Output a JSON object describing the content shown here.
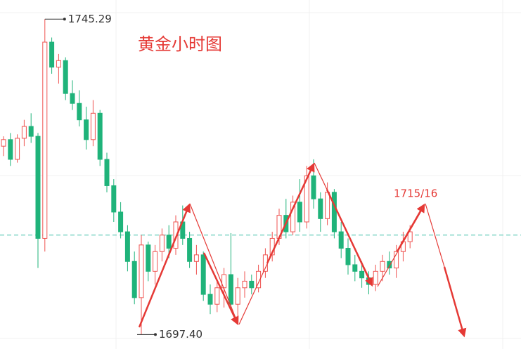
{
  "chart_data": {
    "type": "candlestick",
    "title": "黄金小时图",
    "target_label": "1715/16",
    "max_marker": 1745.29,
    "min_marker": {
      "value": 1697.4,
      "label": "1697.40"
    },
    "reference_line": 1712.5,
    "ylim": [
      1695.2,
      1748.2
    ],
    "up_color": "#ef5350",
    "down_color": "#1fb37a",
    "reference_color": "#6fcfbf",
    "annotation_color": "#e53935",
    "open": [
      1726.0,
      1727.0,
      1724.0,
      1727.2,
      1729.0,
      1727.5,
      1712.0,
      1741.8,
      1738.0,
      1739.0,
      1734.0,
      1732.5,
      1730.0,
      1727.0,
      1731.0,
      1724.0,
      1720.0,
      1716.0,
      1713.0,
      1708.5,
      1703.0,
      1711.0,
      1707.0,
      1710.0,
      1712.5,
      1710.5,
      1714.5,
      1712.0,
      1708.5,
      1709.5,
      1703.5,
      1702.0,
      1704.5,
      1706.5,
      1702.0,
      1704.5,
      1705.5,
      1704.5,
      1707.0,
      1709.5,
      1712.0,
      1715.5,
      1713.0,
      1717.5,
      1714.5,
      1721.5,
      1718.0,
      1715.0,
      1719.0,
      1713.0,
      1710.5,
      1708.0,
      1707.0,
      1706.0,
      1705.0,
      1707.0,
      1708.5,
      1707.5,
      1710.0,
      1711.5
    ],
    "high": [
      1727.5,
      1728.0,
      1727.8,
      1730.0,
      1731.0,
      1728.0,
      1745.29,
      1742.5,
      1740.0,
      1739.5,
      1736.0,
      1734.5,
      1732.0,
      1733.0,
      1731.5,
      1725.0,
      1721.0,
      1717.5,
      1714.0,
      1710.0,
      1712.5,
      1711.5,
      1711.0,
      1713.5,
      1714.0,
      1715.5,
      1717.0,
      1713.0,
      1711.0,
      1710.0,
      1705.0,
      1705.5,
      1707.5,
      1712.8,
      1706.0,
      1707.0,
      1706.5,
      1708.0,
      1710.5,
      1713.0,
      1716.5,
      1718.0,
      1718.5,
      1721.0,
      1723.0,
      1724.0,
      1719.0,
      1720.5,
      1719.5,
      1714.5,
      1712.0,
      1709.5,
      1708.5,
      1707.0,
      1708.0,
      1709.5,
      1710.0,
      1711.0,
      1713.0,
      1714.0
    ],
    "low": [
      1724.5,
      1723.0,
      1723.5,
      1726.0,
      1726.5,
      1707.5,
      1710.0,
      1737.0,
      1735.5,
      1733.0,
      1731.5,
      1729.0,
      1725.5,
      1726.0,
      1723.0,
      1719.0,
      1714.5,
      1712.0,
      1707.0,
      1702.0,
      1697.4,
      1705.5,
      1705.0,
      1708.5,
      1709.0,
      1709.5,
      1711.0,
      1707.5,
      1706.5,
      1702.5,
      1700.5,
      1700.8,
      1701.5,
      1701.0,
      1700.0,
      1703.0,
      1703.5,
      1703.8,
      1706.0,
      1708.5,
      1711.0,
      1712.0,
      1712.5,
      1713.0,
      1713.5,
      1716.5,
      1713.0,
      1714.0,
      1712.0,
      1709.0,
      1706.5,
      1705.5,
      1704.5,
      1703.5,
      1704.0,
      1705.5,
      1706.5,
      1706.0,
      1708.5,
      1710.5
    ],
    "close": [
      1727.0,
      1724.0,
      1727.2,
      1729.0,
      1727.5,
      1712.0,
      1741.8,
      1738.0,
      1739.0,
      1734.0,
      1732.5,
      1730.0,
      1727.0,
      1731.0,
      1724.0,
      1720.0,
      1716.0,
      1713.0,
      1708.5,
      1703.0,
      1711.0,
      1707.0,
      1710.0,
      1712.5,
      1710.5,
      1714.5,
      1712.0,
      1708.5,
      1709.5,
      1703.5,
      1702.0,
      1704.5,
      1706.5,
      1702.0,
      1704.5,
      1705.5,
      1704.5,
      1707.0,
      1709.5,
      1712.0,
      1715.5,
      1713.0,
      1717.5,
      1714.5,
      1721.5,
      1718.0,
      1715.0,
      1719.0,
      1713.0,
      1710.5,
      1708.0,
      1707.0,
      1706.0,
      1705.0,
      1707.0,
      1708.5,
      1707.5,
      1710.0,
      1711.5,
      1713.0
    ]
  }
}
